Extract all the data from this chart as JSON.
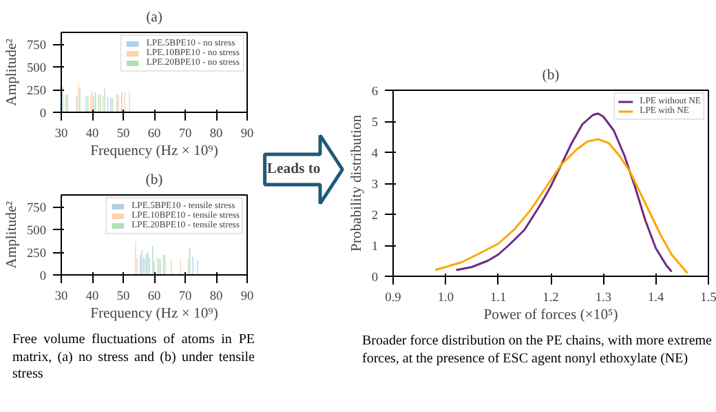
{
  "chart_data": [
    {
      "type": "bar",
      "title": "(a)",
      "xlabel": "Frequency (Hz × 10⁹)",
      "ylabel": "Amplitude²",
      "xlim": [
        30,
        90
      ],
      "ylim": [
        0,
        880
      ],
      "xticks": [
        30,
        40,
        50,
        60,
        70,
        80,
        90
      ],
      "yticks": [
        0,
        250,
        500,
        750
      ],
      "grid": false,
      "legend": "top right",
      "series": [
        {
          "name": "LPE.5BPE10 - no stress",
          "color": "#1f77b4",
          "x": [
            30.5,
            32,
            35,
            38,
            41,
            45,
            46,
            48,
            49.5
          ],
          "values": [
            280,
            200,
            170,
            170,
            220,
            170,
            160,
            200,
            220
          ]
        },
        {
          "name": "LPE.10BPE10 - no stress",
          "color": "#ff7f0e",
          "x": [
            35.5,
            39.5,
            40,
            43.5,
            48.5,
            50.5,
            52
          ],
          "values": [
            310,
            200,
            240,
            170,
            190,
            220,
            230
          ]
        },
        {
          "name": "LPE.20BPE10 - no stress",
          "color": "#2ca02c",
          "x": [
            31.5,
            36,
            38.6,
            40.5,
            42,
            42.6,
            44,
            46.5
          ],
          "values": [
            190,
            270,
            180,
            180,
            200,
            200,
            260,
            160
          ]
        }
      ]
    },
    {
      "type": "bar",
      "title": "(b)",
      "xlabel": "Frequency (Hz × 10⁹)",
      "ylabel": "Amplitude²",
      "xlim": [
        30,
        90
      ],
      "ylim": [
        0,
        880
      ],
      "xticks": [
        30,
        40,
        50,
        60,
        70,
        80,
        90
      ],
      "yticks": [
        0,
        250,
        500,
        750
      ],
      "grid": false,
      "legend": "top right",
      "annotations": [
        "Free volume fluctuations of atoms in PE matrix, (a) no stress and (b) under tensile stress"
      ],
      "series": [
        {
          "name": "LPE.5BPE10 - tensile stress",
          "color": "#1f77b4",
          "x": [
            55.5,
            56,
            57.5,
            58,
            60,
            63,
            71.5,
            72.5,
            74
          ],
          "values": [
            220,
            270,
            230,
            250,
            150,
            220,
            300,
            200,
            160
          ]
        },
        {
          "name": "LPE.10BPE10 - tensile stress",
          "color": "#ff7f0e",
          "x": [
            54,
            54.5,
            61,
            65.5,
            68.5
          ],
          "values": [
            370,
            180,
            190,
            180,
            170
          ]
        },
        {
          "name": "LPE.20BPE10 - tensile stress",
          "color": "#2ca02c",
          "x": [
            56.5,
            57,
            58.5,
            59.5,
            61.5,
            62,
            63.5,
            71
          ],
          "values": [
            190,
            180,
            180,
            320,
            180,
            180,
            220,
            180
          ]
        }
      ]
    },
    {
      "type": "other",
      "annotations": [
        "Leads to"
      ]
    },
    {
      "type": "line",
      "title": "(b)",
      "xlabel": "Power of forces (×10⁵)",
      "ylabel": "Probability distribution",
      "xlim": [
        0.9,
        1.5
      ],
      "ylim": [
        0,
        6
      ],
      "xticks": [
        0.9,
        {
          "value": 1.0,
          "label": "1.0"
        },
        1.1,
        1.2,
        1.3,
        1.4,
        1.5
      ],
      "yticks": [
        0,
        1,
        2,
        3,
        4,
        5,
        6
      ],
      "grid": false,
      "legend": "top right",
      "annotations": [
        "Broader force distribution on the PE chains, with more extreme forces, at the presence of ESC agent nonyl ethoxylate (NE)"
      ],
      "series": [
        {
          "name": "LPE without NE",
          "color": "#6b2c80",
          "x": [
            1.02,
            1.05,
            1.08,
            1.1,
            1.12,
            1.15,
            1.18,
            1.2,
            1.22,
            1.24,
            1.26,
            1.28,
            1.29,
            1.3,
            1.32,
            1.34,
            1.36,
            1.38,
            1.4,
            1.42,
            1.43
          ],
          "values": [
            0.2,
            0.3,
            0.5,
            0.7,
            1.0,
            1.5,
            2.3,
            2.9,
            3.6,
            4.3,
            4.9,
            5.2,
            5.25,
            5.15,
            4.7,
            3.9,
            2.9,
            1.8,
            0.9,
            0.35,
            0.15
          ]
        },
        {
          "name": "LPE with NE",
          "color": "#ffa500",
          "x": [
            0.98,
            1.0,
            1.03,
            1.06,
            1.1,
            1.13,
            1.16,
            1.18,
            1.2,
            1.22,
            1.25,
            1.27,
            1.29,
            1.31,
            1.33,
            1.35,
            1.37,
            1.39,
            1.41,
            1.43,
            1.45,
            1.46
          ],
          "values": [
            0.2,
            0.3,
            0.45,
            0.7,
            1.05,
            1.5,
            2.1,
            2.6,
            3.1,
            3.6,
            4.1,
            4.35,
            4.42,
            4.3,
            3.9,
            3.4,
            2.7,
            2.0,
            1.3,
            0.7,
            0.3,
            0.1
          ]
        }
      ]
    }
  ]
}
